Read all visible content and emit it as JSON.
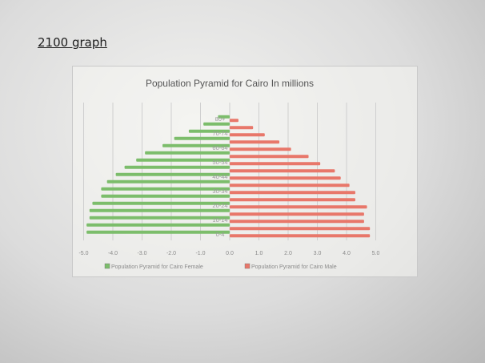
{
  "document": {
    "heading": "2100 graph"
  },
  "chart_data": {
    "type": "bar",
    "orientation": "horizontal",
    "title": "Population Pyramid for Cairo In millions",
    "categories": [
      "0-4",
      "5-9",
      "10-14",
      "15-19",
      "20-24",
      "25-29",
      "30-34",
      "35-39",
      "40-44",
      "45-49",
      "50-54",
      "55-59",
      "60-64",
      "65-69",
      "70-74",
      "75-79",
      "80+"
    ],
    "visible_category_labels": [
      "0-4",
      "10-14",
      "20-24",
      "30-34",
      "40-44",
      "50-54",
      "60-64",
      "70-74",
      "80+"
    ],
    "series": [
      {
        "name": "Population Pyramid for Cairo Female",
        "color": "#7cbd6b",
        "values": [
          -4.9,
          -4.9,
          -4.8,
          -4.8,
          -4.7,
          -4.4,
          -4.4,
          -4.2,
          -3.9,
          -3.6,
          -3.2,
          -2.9,
          -2.3,
          -1.9,
          -1.4,
          -0.9,
          -0.4
        ]
      },
      {
        "name": "Population Pyramid for Cairo Male",
        "color": "#e8776a",
        "values": [
          4.8,
          4.8,
          4.6,
          4.6,
          4.7,
          4.3,
          4.3,
          4.1,
          3.8,
          3.6,
          3.1,
          2.7,
          2.1,
          1.7,
          1.2,
          0.8,
          0.3
        ]
      }
    ],
    "xlim": [
      -5.0,
      5.0
    ],
    "x_ticks": [
      "-5.0",
      "-4.0",
      "-3.0",
      "-2.0",
      "-1.0",
      "0.0",
      "1.0",
      "2.0",
      "3.0",
      "4.0",
      "5.0"
    ],
    "x_tick_values": [
      -5,
      -4,
      -3,
      -2,
      -1,
      0,
      1,
      2,
      3,
      4,
      5
    ],
    "grid": true,
    "legend_position": "bottom"
  }
}
